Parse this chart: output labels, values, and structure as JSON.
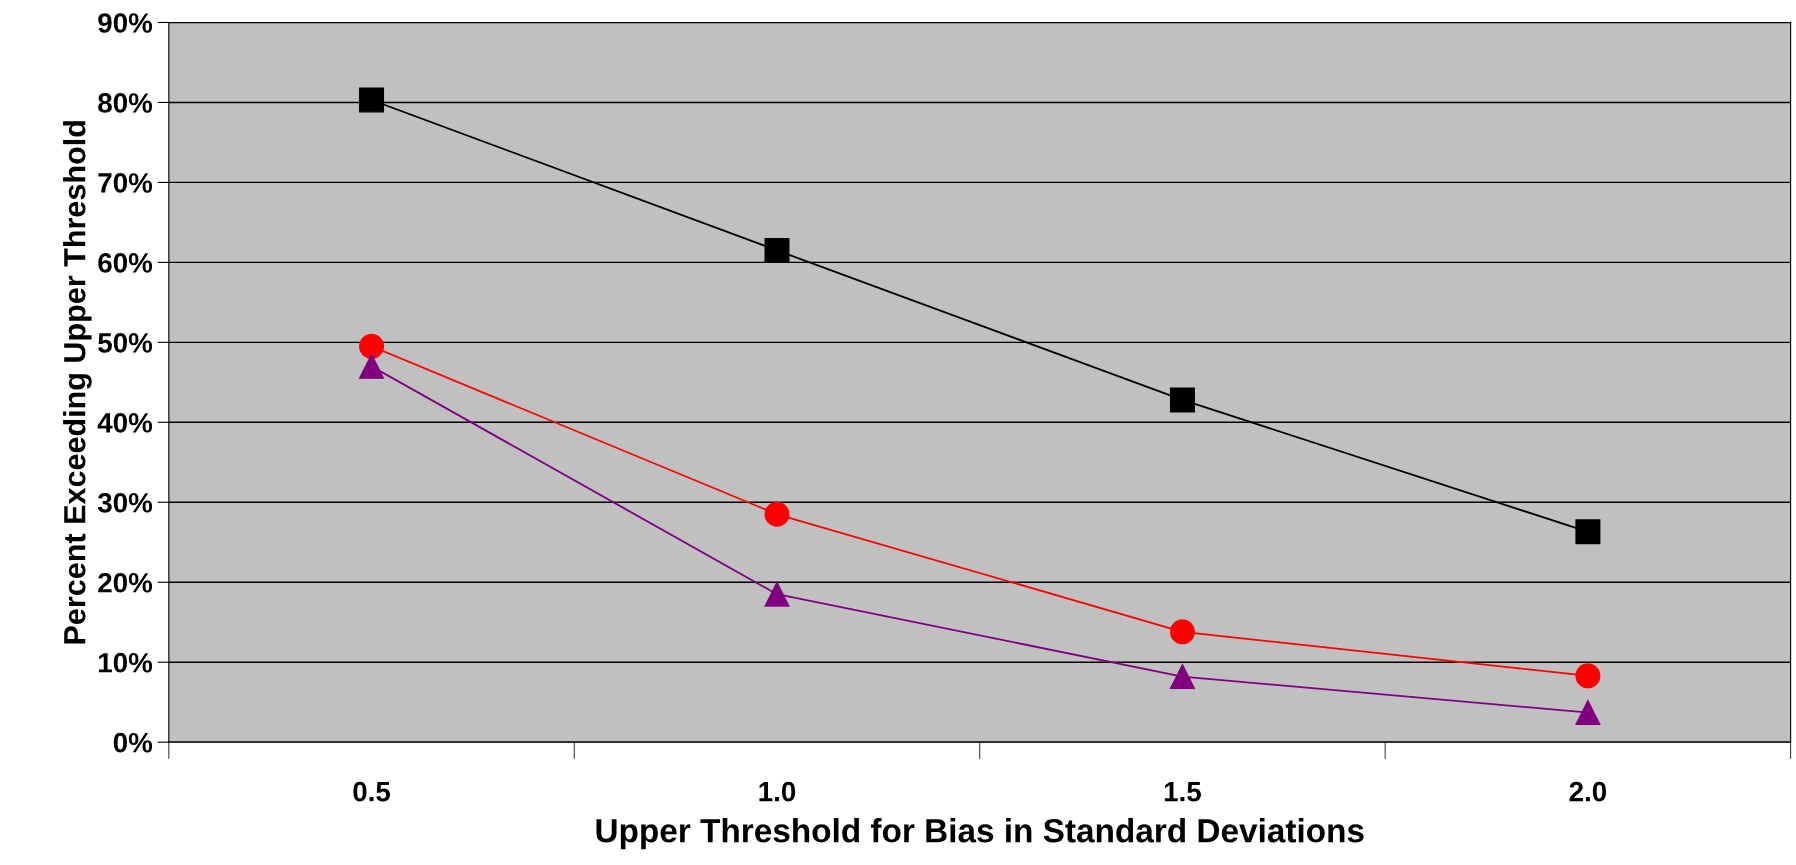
{
  "chart_data": {
    "type": "line",
    "xlabel": "Upper Threshold for Bias in Standard Deviations",
    "ylabel": "Percent Exceeding Upper Threshold",
    "categories": [
      "0.5",
      "1.0",
      "1.5",
      "2.0"
    ],
    "series": [
      {
        "color": "#000000",
        "marker": "square",
        "values": [
          80.3,
          61.5,
          42.8,
          26.3
        ]
      },
      {
        "color": "#ff0000",
        "marker": "circle",
        "values": [
          49.5,
          28.5,
          13.8,
          8.3
        ]
      },
      {
        "color": "#800080",
        "marker": "triangle",
        "values": [
          47,
          18.5,
          8.2,
          3.7
        ]
      }
    ],
    "ylim": [
      0,
      90
    ],
    "yticks": [
      {
        "value": 0,
        "label": "0%"
      },
      {
        "value": 10,
        "label": "10%"
      },
      {
        "value": 20,
        "label": "20%"
      },
      {
        "value": 30,
        "label": "30%"
      },
      {
        "value": 40,
        "label": "40%"
      },
      {
        "value": 50,
        "label": "50%"
      },
      {
        "value": 60,
        "label": "60%"
      },
      {
        "value": 70,
        "label": "70%"
      },
      {
        "value": 80,
        "label": "80%"
      },
      {
        "value": 90,
        "label": "90%"
      }
    ],
    "grid": "y",
    "line_style": "solid"
  }
}
